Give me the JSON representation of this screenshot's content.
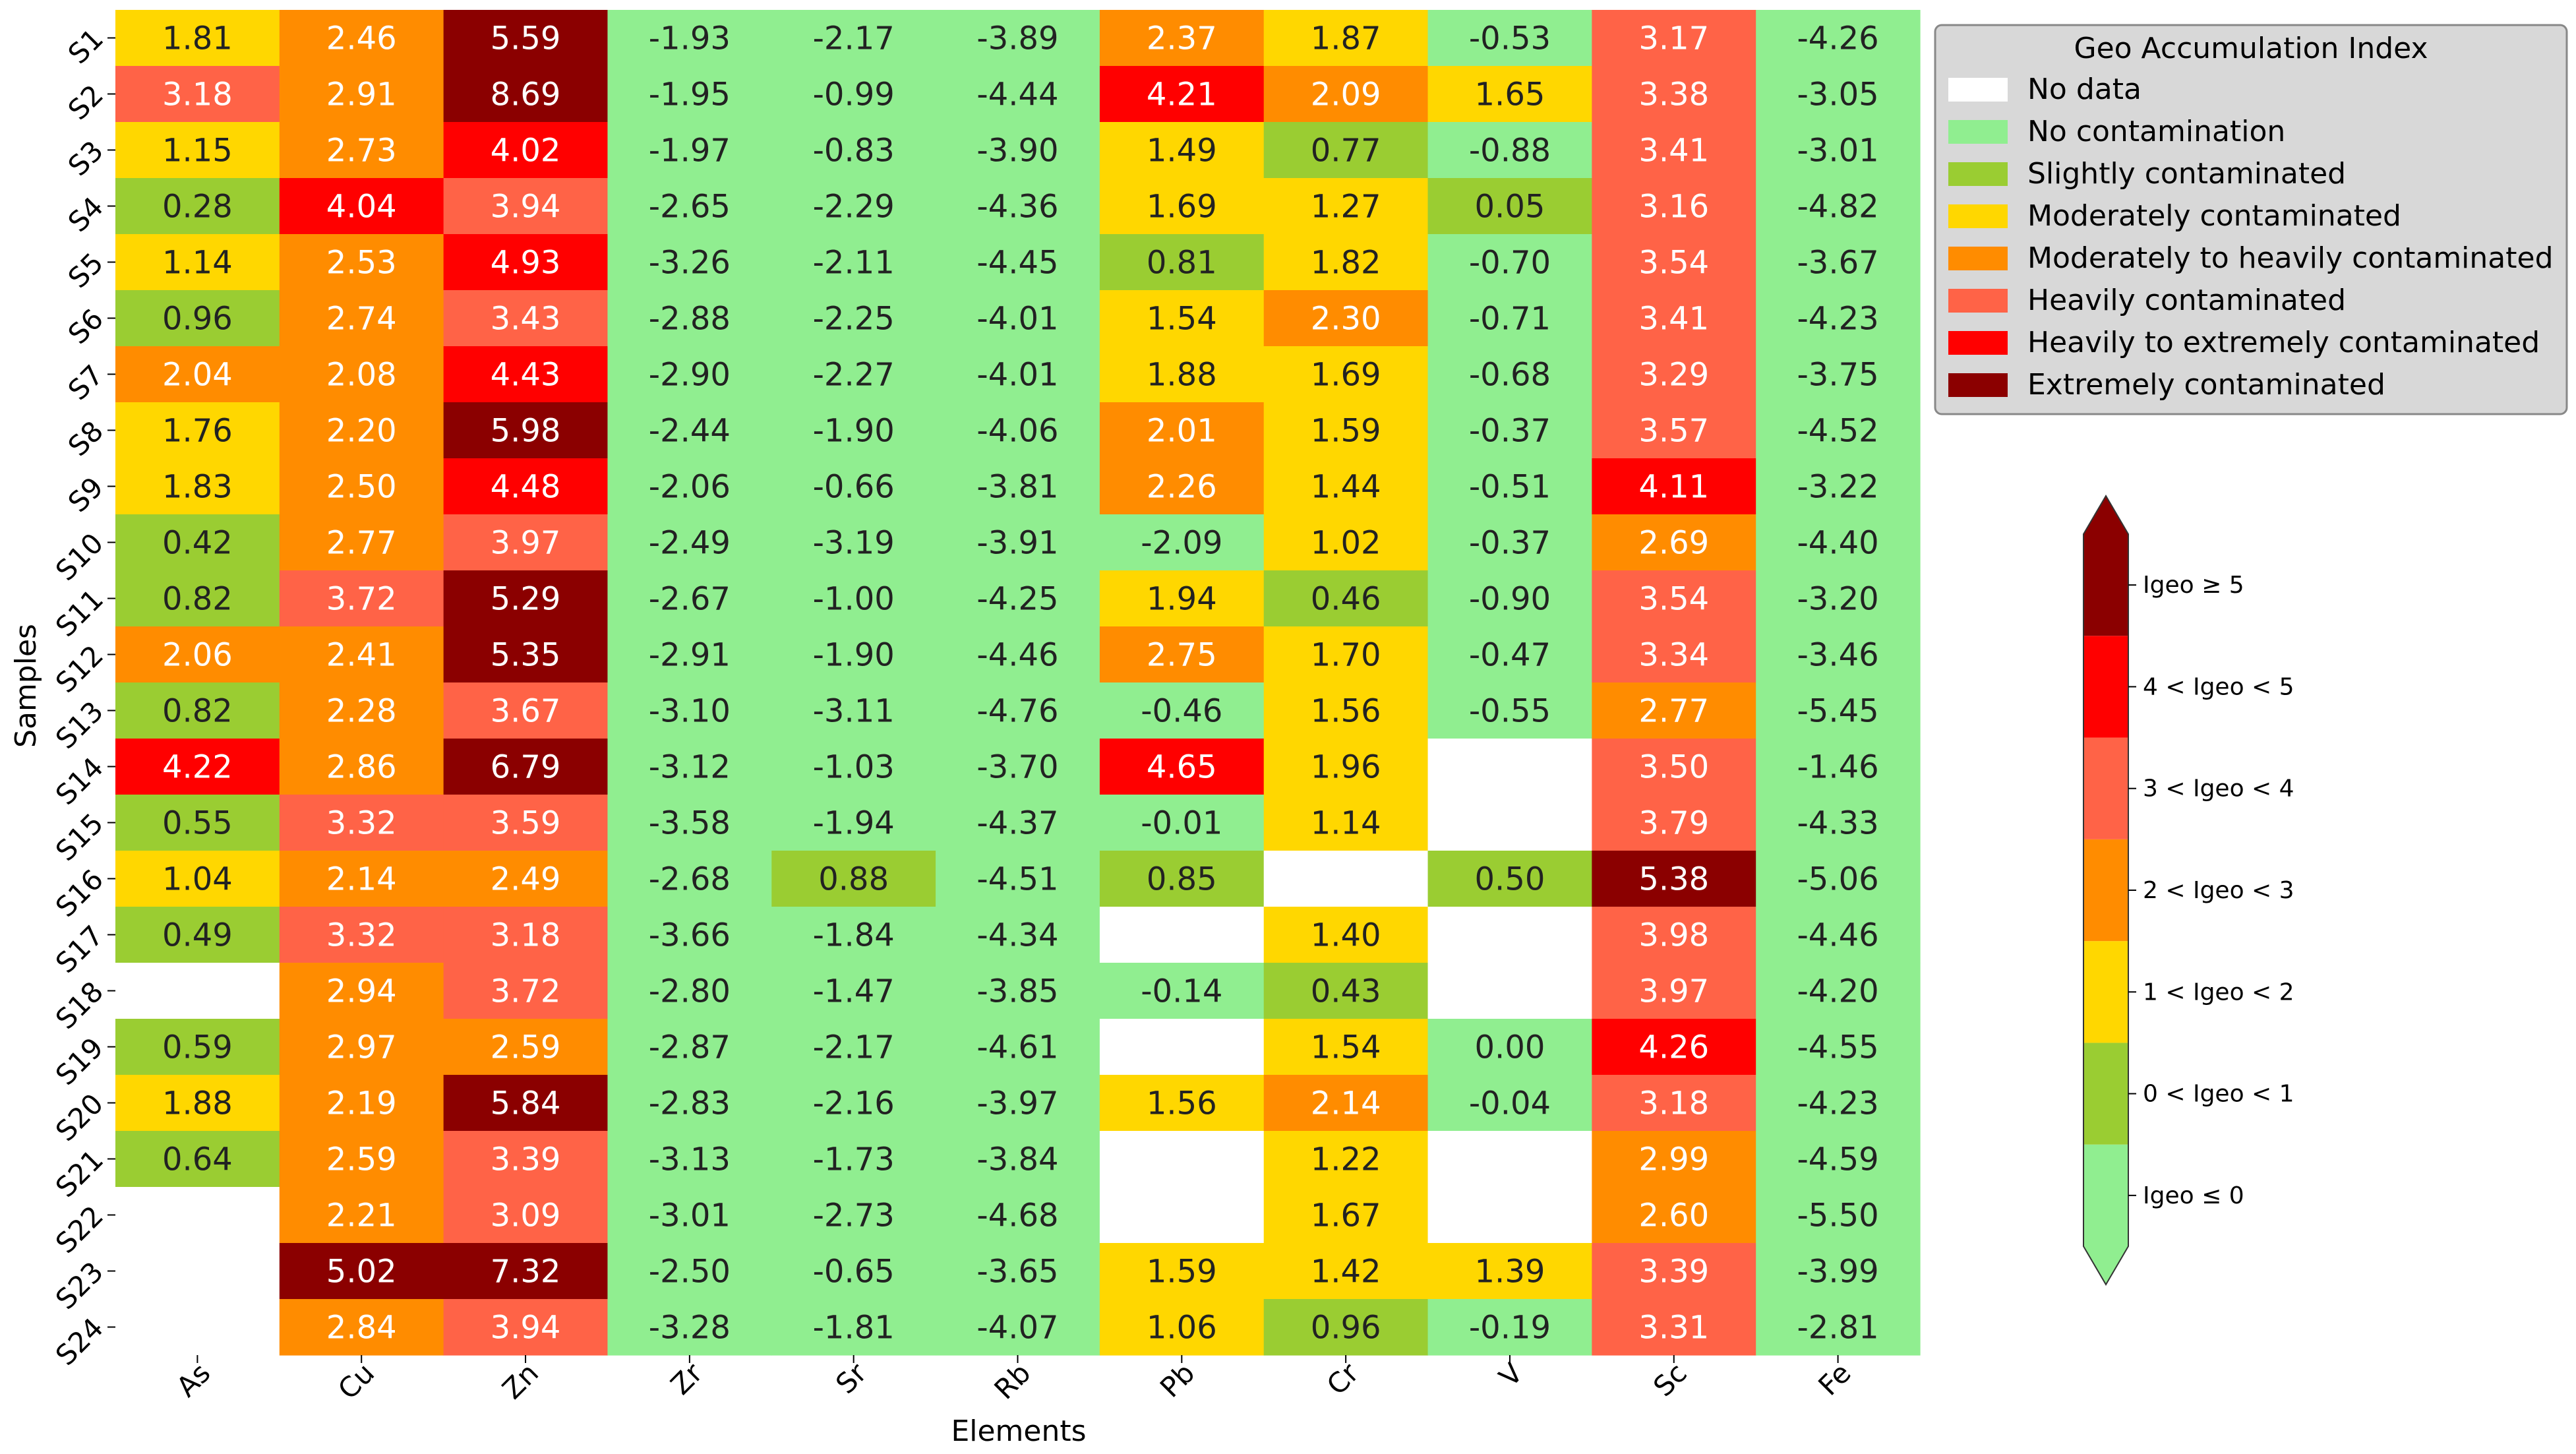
{
  "chart_data": {
    "type": "heatmap",
    "xlabel": "Elements",
    "ylabel": "Samples",
    "columns": [
      "As",
      "Cu",
      "Zn",
      "Zr",
      "Sr",
      "Rb",
      "Pb",
      "Cr",
      "V",
      "Sc",
      "Fe"
    ],
    "rows": [
      "S1",
      "S2",
      "S3",
      "S4",
      "S5",
      "S6",
      "S7",
      "S8",
      "S9",
      "S10",
      "S11",
      "S12",
      "S13",
      "S14",
      "S15",
      "S16",
      "S17",
      "S18",
      "S19",
      "S20",
      "S21",
      "S22",
      "S23",
      "S24"
    ],
    "values": [
      [
        1.81,
        2.46,
        5.59,
        -1.93,
        -2.17,
        -3.89,
        2.37,
        1.87,
        -0.53,
        3.17,
        -4.26
      ],
      [
        3.18,
        2.91,
        8.69,
        -1.95,
        -0.99,
        -4.44,
        4.21,
        2.09,
        1.65,
        3.38,
        -3.05
      ],
      [
        1.15,
        2.73,
        4.02,
        -1.97,
        -0.83,
        -3.9,
        1.49,
        0.77,
        -0.88,
        3.41,
        -3.01
      ],
      [
        0.28,
        4.04,
        3.94,
        -2.65,
        -2.29,
        -4.36,
        1.69,
        1.27,
        0.05,
        3.16,
        -4.82
      ],
      [
        1.14,
        2.53,
        4.93,
        -3.26,
        -2.11,
        -4.45,
        0.81,
        1.82,
        -0.7,
        3.54,
        -3.67
      ],
      [
        0.96,
        2.74,
        3.43,
        -2.88,
        -2.25,
        -4.01,
        1.54,
        2.3,
        -0.71,
        3.41,
        -4.23
      ],
      [
        2.04,
        2.08,
        4.43,
        -2.9,
        -2.27,
        -4.01,
        1.88,
        1.69,
        -0.68,
        3.29,
        -3.75
      ],
      [
        1.76,
        2.2,
        5.98,
        -2.44,
        -1.9,
        -4.06,
        2.01,
        1.59,
        -0.37,
        3.57,
        -4.52
      ],
      [
        1.83,
        2.5,
        4.48,
        -2.06,
        -0.66,
        -3.81,
        2.26,
        1.44,
        -0.51,
        4.11,
        -3.22
      ],
      [
        0.42,
        2.77,
        3.97,
        -2.49,
        -3.19,
        -3.91,
        -2.09,
        1.02,
        -0.37,
        2.69,
        -4.4
      ],
      [
        0.82,
        3.72,
        5.29,
        -2.67,
        -1.0,
        -4.25,
        1.94,
        0.46,
        -0.9,
        3.54,
        -3.2
      ],
      [
        2.06,
        2.41,
        5.35,
        -2.91,
        -1.9,
        -4.46,
        2.75,
        1.7,
        -0.47,
        3.34,
        -3.46
      ],
      [
        0.82,
        2.28,
        3.67,
        -3.1,
        -3.11,
        -4.76,
        -0.46,
        1.56,
        -0.55,
        2.77,
        -5.45
      ],
      [
        4.22,
        2.86,
        6.79,
        -3.12,
        -1.03,
        -3.7,
        4.65,
        1.96,
        null,
        3.5,
        -1.46
      ],
      [
        0.55,
        3.32,
        3.59,
        -3.58,
        -1.94,
        -4.37,
        -0.01,
        1.14,
        null,
        3.79,
        -4.33
      ],
      [
        1.04,
        2.14,
        2.49,
        -2.68,
        0.88,
        -4.51,
        0.85,
        null,
        0.5,
        5.38,
        -5.06
      ],
      [
        0.49,
        3.32,
        3.18,
        -3.66,
        -1.84,
        -4.34,
        null,
        1.4,
        null,
        3.98,
        -4.46
      ],
      [
        null,
        2.94,
        3.72,
        -2.8,
        -1.47,
        -3.85,
        -0.14,
        0.43,
        null,
        3.97,
        -4.2
      ],
      [
        0.59,
        2.97,
        2.59,
        -2.87,
        -2.17,
        -4.61,
        null,
        1.54,
        0.0,
        4.26,
        -4.55
      ],
      [
        1.88,
        2.19,
        5.84,
        -2.83,
        -2.16,
        -3.97,
        1.56,
        2.14,
        -0.04,
        3.18,
        -4.23
      ],
      [
        0.64,
        2.59,
        3.39,
        -3.13,
        -1.73,
        -3.84,
        null,
        1.22,
        null,
        2.99,
        -4.59
      ],
      [
        null,
        2.21,
        3.09,
        -3.01,
        -2.73,
        -4.68,
        null,
        1.67,
        null,
        2.6,
        -5.5
      ],
      [
        null,
        5.02,
        7.32,
        -2.5,
        -0.65,
        -3.65,
        1.59,
        1.42,
        1.39,
        3.39,
        -3.99
      ],
      [
        null,
        2.84,
        3.94,
        -3.28,
        -1.81,
        -4.07,
        1.06,
        0.96,
        -0.19,
        3.31,
        -2.81
      ]
    ],
    "legend": {
      "title": "Geo Accumulation Index",
      "placement": "top-right",
      "items": [
        {
          "label": "No data",
          "color": "#ffffff"
        },
        {
          "label": "No contamination",
          "color": "#90ee90"
        },
        {
          "label": "Slightly contaminated",
          "color": "#9acd32"
        },
        {
          "label": "Moderately contaminated",
          "color": "#ffd700"
        },
        {
          "label": "Moderately to heavily contaminated",
          "color": "#ff8c00"
        },
        {
          "label": "Heavily contaminated",
          "color": "#ff6347"
        },
        {
          "label": "Heavily to extremely contaminated",
          "color": "#ff0000"
        },
        {
          "label": "Extremely contaminated",
          "color": "#8b0000"
        }
      ]
    },
    "colorbar": {
      "bins": [
        {
          "label": "Igeo ≤ 0",
          "color": "#90ee90"
        },
        {
          "label": "0 < Igeo < 1",
          "color": "#9acd32"
        },
        {
          "label": "1 < Igeo < 2",
          "color": "#ffd700"
        },
        {
          "label": "2 < Igeo < 3",
          "color": "#ff8c00"
        },
        {
          "label": "3 < Igeo < 4",
          "color": "#ff6347"
        },
        {
          "label": "4 < Igeo < 5",
          "color": "#ff0000"
        },
        {
          "label": "Igeo ≥ 5",
          "color": "#8b0000"
        }
      ]
    }
  }
}
